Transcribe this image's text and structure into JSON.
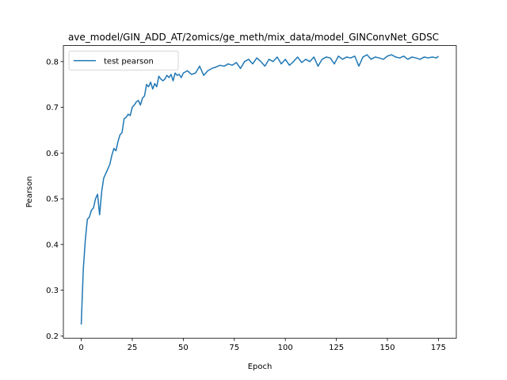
{
  "chart_data": {
    "type": "line",
    "title": "ave_model/GIN_ADD_AT/2omics/ge_meth/mix_data/model_GINConvNet_GDSC",
    "xlabel": "Epoch",
    "ylabel": "Pearson",
    "xlim": [
      -8.75,
      183.75
    ],
    "ylim": [
      0.195,
      0.835
    ],
    "xticks": [
      0,
      25,
      50,
      75,
      100,
      125,
      150,
      175
    ],
    "yticks": [
      0.2,
      0.3,
      0.4,
      0.5,
      0.6,
      0.7,
      0.8
    ],
    "ytick_labels": [
      "0.2",
      "0.3",
      "0.4",
      "0.5",
      "0.6",
      "0.7",
      "0.8"
    ],
    "grid": false,
    "legend": "upper-left",
    "series": [
      {
        "name": "test pearson",
        "color": "#1f77b4",
        "x": [
          0,
          1,
          2,
          3,
          4,
          5,
          6,
          7,
          8,
          9,
          10,
          11,
          12,
          13,
          14,
          15,
          16,
          17,
          18,
          19,
          20,
          21,
          22,
          23,
          24,
          25,
          26,
          27,
          28,
          29,
          30,
          31,
          32,
          33,
          34,
          35,
          36,
          37,
          38,
          39,
          40,
          41,
          42,
          43,
          44,
          45,
          46,
          47,
          48,
          49,
          50,
          52,
          54,
          56,
          58,
          60,
          62,
          64,
          66,
          68,
          70,
          72,
          74,
          76,
          78,
          80,
          82,
          84,
          86,
          88,
          90,
          92,
          94,
          96,
          98,
          100,
          102,
          104,
          106,
          108,
          110,
          112,
          114,
          116,
          118,
          120,
          122,
          124,
          126,
          128,
          130,
          132,
          134,
          136,
          138,
          140,
          142,
          144,
          146,
          148,
          150,
          152,
          154,
          156,
          158,
          160,
          162,
          164,
          166,
          168,
          170,
          172,
          174,
          175
        ],
        "values": [
          0.225,
          0.345,
          0.41,
          0.455,
          0.46,
          0.475,
          0.48,
          0.5,
          0.51,
          0.465,
          0.515,
          0.545,
          0.555,
          0.565,
          0.575,
          0.595,
          0.61,
          0.605,
          0.625,
          0.64,
          0.645,
          0.675,
          0.678,
          0.685,
          0.682,
          0.7,
          0.705,
          0.712,
          0.715,
          0.705,
          0.72,
          0.725,
          0.75,
          0.745,
          0.755,
          0.74,
          0.752,
          0.745,
          0.768,
          0.762,
          0.758,
          0.762,
          0.77,
          0.765,
          0.772,
          0.758,
          0.775,
          0.77,
          0.772,
          0.765,
          0.775,
          0.78,
          0.772,
          0.775,
          0.79,
          0.77,
          0.78,
          0.785,
          0.788,
          0.792,
          0.79,
          0.795,
          0.792,
          0.798,
          0.785,
          0.8,
          0.805,
          0.795,
          0.808,
          0.8,
          0.79,
          0.805,
          0.8,
          0.81,
          0.795,
          0.805,
          0.792,
          0.8,
          0.81,
          0.798,
          0.805,
          0.8,
          0.81,
          0.79,
          0.805,
          0.81,
          0.808,
          0.795,
          0.812,
          0.805,
          0.81,
          0.808,
          0.812,
          0.79,
          0.81,
          0.815,
          0.805,
          0.81,
          0.808,
          0.805,
          0.812,
          0.815,
          0.81,
          0.808,
          0.812,
          0.805,
          0.81,
          0.808,
          0.805,
          0.81,
          0.808,
          0.81,
          0.808,
          0.812
        ]
      }
    ]
  }
}
